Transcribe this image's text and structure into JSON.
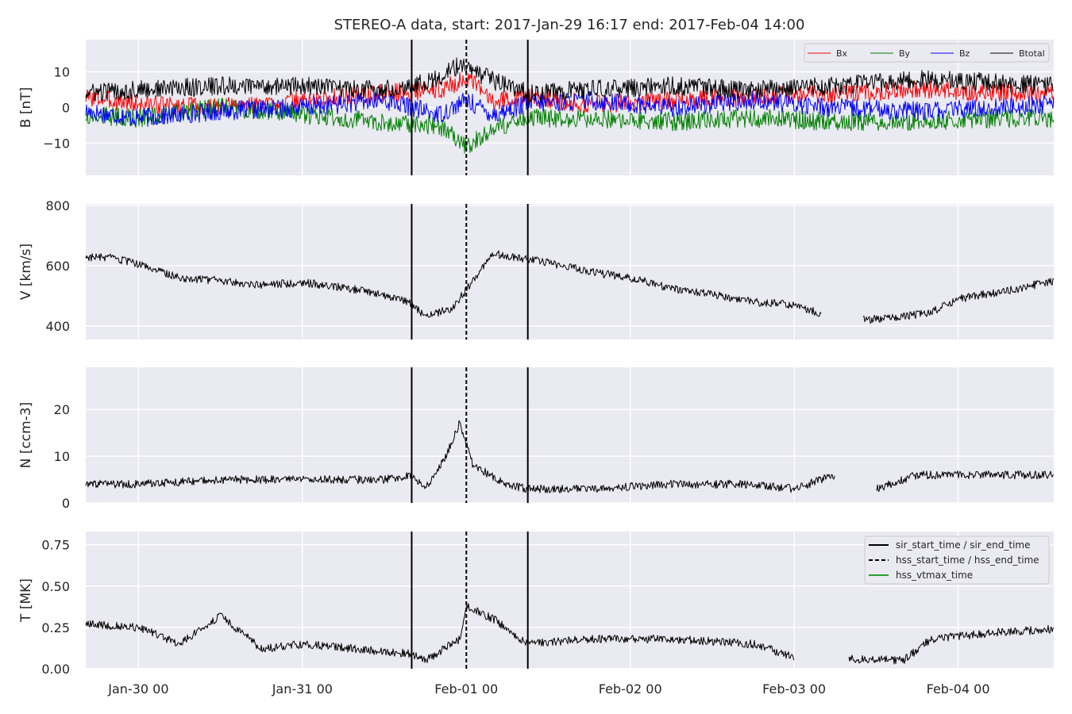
{
  "chart_data": {
    "type": "line",
    "title": "STEREO-A data, start: 2017-Jan-29 16:17  end: 2017-Feb-04 14:00",
    "x_range": [
      "2017-01-29 16:17",
      "2017-02-04 14:00"
    ],
    "x_ticks": [
      {
        "t": "2017-01-30 00:00",
        "label": "Jan-30 00"
      },
      {
        "t": "2017-01-31 00:00",
        "label": "Jan-31 00"
      },
      {
        "t": "2017-02-01 00:00",
        "label": "Feb-01 00"
      },
      {
        "t": "2017-02-02 00:00",
        "label": "Feb-02 00"
      },
      {
        "t": "2017-02-03 00:00",
        "label": "Feb-03 00"
      },
      {
        "t": "2017-02-04 00:00",
        "label": "Feb-04 00"
      }
    ],
    "grid": true,
    "event_lines": {
      "sir_start_time": "2017-01-31 16:00",
      "hss_start_time": "2017-02-01 00:00",
      "sir_end_time": "2017-02-01 09:00"
    },
    "panels": [
      {
        "id": "B",
        "ylabel": "B [nT]",
        "ylim": [
          -19,
          19
        ],
        "yticks": [
          -10,
          0,
          10
        ],
        "ytick_labels": [
          "−10",
          "0",
          "10"
        ],
        "legend_loc": "upper right",
        "series": [
          {
            "name": "Bx",
            "color": "#ff0000",
            "x": [
              "2017-01-29 16:17",
              "2017-01-30 00:00",
              "2017-01-30 12:00",
              "2017-01-31 00:00",
              "2017-01-31 12:00",
              "2017-01-31 20:00",
              "2017-02-01 00:00",
              "2017-02-01 04:00",
              "2017-02-01 09:00",
              "2017-02-01 18:00",
              "2017-02-02 06:00",
              "2017-02-02 18:00",
              "2017-02-03 06:00",
              "2017-02-03 18:00",
              "2017-02-04 06:00",
              "2017-02-04 14:00"
            ],
            "y": [
              3,
              1,
              0,
              2,
              4,
              5,
              8,
              2,
              3,
              1,
              2,
              3,
              4,
              5,
              4,
              4
            ]
          },
          {
            "name": "By",
            "color": "#008000",
            "x": [
              "2017-01-29 16:17",
              "2017-01-30 00:00",
              "2017-01-30 12:00",
              "2017-01-31 00:00",
              "2017-01-31 12:00",
              "2017-01-31 20:00",
              "2017-02-01 00:00",
              "2017-02-01 04:00",
              "2017-02-01 09:00",
              "2017-02-01 18:00",
              "2017-02-02 06:00",
              "2017-02-02 18:00",
              "2017-02-03 06:00",
              "2017-02-03 18:00",
              "2017-02-04 06:00",
              "2017-02-04 14:00"
            ],
            "y": [
              -2,
              -3,
              0,
              -2,
              -4,
              -5,
              -11,
              -6,
              -3,
              -3,
              -4,
              -3,
              -4,
              -4,
              -3,
              -3
            ]
          },
          {
            "name": "Bz",
            "color": "#0000ff",
            "x": [
              "2017-01-29 16:17",
              "2017-01-30 00:00",
              "2017-01-30 12:00",
              "2017-01-31 00:00",
              "2017-01-31 12:00",
              "2017-01-31 20:00",
              "2017-02-01 00:00",
              "2017-02-01 04:00",
              "2017-02-01 09:00",
              "2017-02-01 18:00",
              "2017-02-02 06:00",
              "2017-02-02 18:00",
              "2017-02-03 06:00",
              "2017-02-03 18:00",
              "2017-02-04 06:00",
              "2017-02-04 14:00"
            ],
            "y": [
              -1,
              -3,
              -1,
              0,
              2,
              -2,
              2,
              -2,
              1,
              2,
              0,
              2,
              0,
              -1,
              0,
              1
            ]
          },
          {
            "name": "Btotal",
            "color": "#000000",
            "x": [
              "2017-01-29 16:17",
              "2017-01-30 00:00",
              "2017-01-30 12:00",
              "2017-01-31 00:00",
              "2017-01-31 12:00",
              "2017-01-31 20:00",
              "2017-01-31 23:00",
              "2017-02-01 02:00",
              "2017-02-01 09:00",
              "2017-02-01 18:00",
              "2017-02-02 06:00",
              "2017-02-02 18:00",
              "2017-02-03 06:00",
              "2017-02-03 18:00",
              "2017-02-04 06:00",
              "2017-02-04 14:00"
            ],
            "y": [
              4,
              5,
              6,
              6,
              5,
              8,
              12,
              9,
              4,
              5,
              6,
              5,
              6,
              8,
              7,
              6
            ]
          }
        ]
      },
      {
        "id": "V",
        "ylabel": "V [km/s]",
        "ylim": [
          355,
          805
        ],
        "yticks": [
          400,
          600,
          800
        ],
        "ytick_labels": [
          "400",
          "600",
          "800"
        ],
        "series": [
          {
            "name": "",
            "color": "#000000",
            "x": [
              "2017-01-29 16:17",
              "2017-01-29 20:00",
              "2017-01-30 00:00",
              "2017-01-30 06:00",
              "2017-01-30 12:00",
              "2017-01-30 18:00",
              "2017-01-31 00:00",
              "2017-01-31 08:00",
              "2017-01-31 14:00",
              "2017-01-31 16:00",
              "2017-01-31 18:00",
              "2017-01-31 22:00",
              "2017-02-01 00:00",
              "2017-02-01 04:00",
              "2017-02-01 08:00",
              "2017-02-01 12:00",
              "2017-02-01 18:00",
              "2017-02-02 00:00",
              "2017-02-02 06:00",
              "2017-02-02 12:00",
              "2017-02-02 18:00",
              "2017-02-03 00:00",
              "2017-02-03 04:00",
              "2017-02-03 07:00",
              "2017-02-03 10:00",
              "2017-02-03 16:00",
              "2017-02-03 20:00",
              "2017-02-04 00:00",
              "2017-02-04 08:00",
              "2017-02-04 14:00"
            ],
            "y": [
              630,
              625,
              605,
              560,
              550,
              535,
              545,
              520,
              490,
              475,
              430,
              460,
              520,
              640,
              625,
              610,
              580,
              560,
              525,
              505,
              480,
              470,
              440,
              null,
              420,
              430,
              445,
              490,
              520,
              550
            ]
          }
        ]
      },
      {
        "id": "N",
        "ylabel": "N [ccm-3]",
        "ylim": [
          0,
          29
        ],
        "yticks": [
          0,
          10,
          20
        ],
        "ytick_labels": [
          "0",
          "10",
          "20"
        ],
        "series": [
          {
            "name": "",
            "color": "#000000",
            "x": [
              "2017-01-29 16:17",
              "2017-01-30 00:00",
              "2017-01-30 12:00",
              "2017-01-31 00:00",
              "2017-01-31 12:00",
              "2017-01-31 16:00",
              "2017-01-31 18:00",
              "2017-01-31 21:00",
              "2017-01-31 23:00",
              "2017-02-01 01:00",
              "2017-02-01 06:00",
              "2017-02-01 09:00",
              "2017-02-01 18:00",
              "2017-02-02 06:00",
              "2017-02-02 18:00",
              "2017-02-03 00:00",
              "2017-02-03 06:00",
              "2017-02-03 10:00",
              "2017-02-03 12:00",
              "2017-02-03 18:00",
              "2017-02-04 00:00",
              "2017-02-04 14:00"
            ],
            "y": [
              4,
              4,
              5,
              5,
              5,
              6,
              3,
              10,
              17,
              8,
              4,
              3,
              3,
              4,
              4,
              3,
              6,
              null,
              3,
              6,
              6,
              6
            ]
          }
        ]
      },
      {
        "id": "T",
        "ylabel": "T [MK]",
        "ylim": [
          0,
          0.83
        ],
        "yticks": [
          0.0,
          0.25,
          0.5,
          0.75
        ],
        "ytick_labels": [
          "0.00",
          "0.25",
          "0.50",
          "0.75"
        ],
        "legend_loc": "upper right",
        "legend_entries": [
          {
            "label": "sir_start_time / sir_end_time",
            "color": "#000000",
            "style": "solid"
          },
          {
            "label": "hss_start_time / hss_end_time",
            "color": "#000000",
            "style": "dashed"
          },
          {
            "label": "hss_vtmax_time",
            "color": "#2ca02c",
            "style": "solid"
          }
        ],
        "series": [
          {
            "name": "",
            "color": "#000000",
            "x": [
              "2017-01-29 16:17",
              "2017-01-30 00:00",
              "2017-01-30 06:00",
              "2017-01-30 12:00",
              "2017-01-30 18:00",
              "2017-01-31 00:00",
              "2017-01-31 08:00",
              "2017-01-31 16:00",
              "2017-01-31 18:00",
              "2017-01-31 23:00",
              "2017-02-01 00:00",
              "2017-02-01 04:00",
              "2017-02-01 09:00",
              "2017-02-01 18:00",
              "2017-02-02 06:00",
              "2017-02-02 18:00",
              "2017-02-03 00:00",
              "2017-02-03 06:00",
              "2017-02-03 08:00",
              "2017-02-03 16:00",
              "2017-02-03 20:00",
              "2017-02-04 06:00",
              "2017-02-04 14:00"
            ],
            "y": [
              0.27,
              0.25,
              0.15,
              0.32,
              0.12,
              0.15,
              0.12,
              0.09,
              0.05,
              0.18,
              0.38,
              0.3,
              0.15,
              0.18,
              0.18,
              0.15,
              0.07,
              null,
              0.06,
              0.05,
              0.18,
              0.22,
              0.24
            ]
          }
        ]
      }
    ]
  }
}
